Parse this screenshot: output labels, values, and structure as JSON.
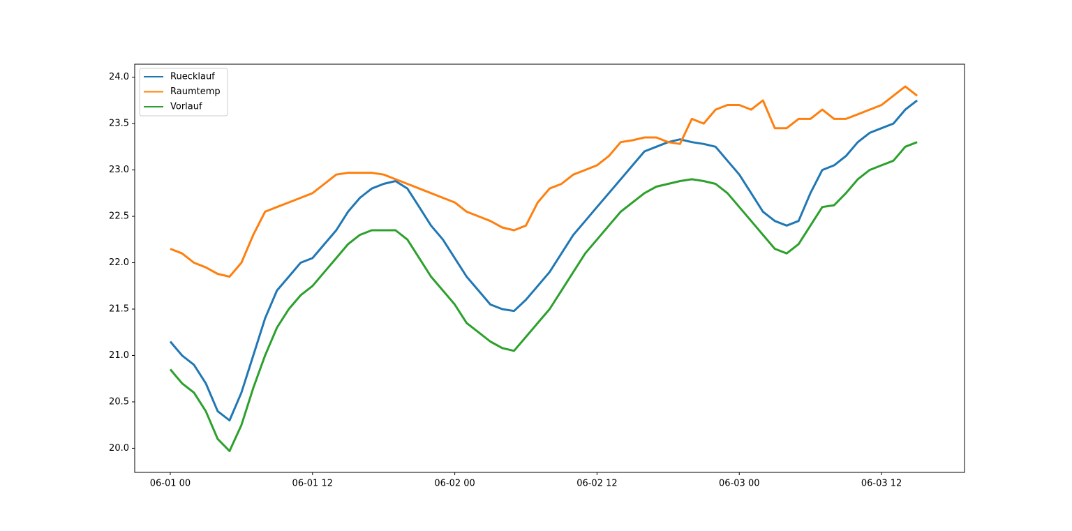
{
  "chart_data": {
    "type": "line",
    "x": [
      "06-01 00",
      "06-01 01",
      "06-01 02",
      "06-01 03",
      "06-01 04",
      "06-01 05",
      "06-01 06",
      "06-01 07",
      "06-01 08",
      "06-01 09",
      "06-01 10",
      "06-01 11",
      "06-01 12",
      "06-01 13",
      "06-01 14",
      "06-01 15",
      "06-01 16",
      "06-01 17",
      "06-01 18",
      "06-01 19",
      "06-01 20",
      "06-01 21",
      "06-01 22",
      "06-01 23",
      "06-02 00",
      "06-02 01",
      "06-02 02",
      "06-02 03",
      "06-02 04",
      "06-02 05",
      "06-02 06",
      "06-02 07",
      "06-02 08",
      "06-02 09",
      "06-02 10",
      "06-02 11",
      "06-02 12",
      "06-02 13",
      "06-02 14",
      "06-02 15",
      "06-02 16",
      "06-02 17",
      "06-02 18",
      "06-02 19",
      "06-02 20",
      "06-02 21",
      "06-02 22",
      "06-02 23",
      "06-03 00",
      "06-03 01",
      "06-03 02",
      "06-03 03",
      "06-03 04",
      "06-03 05",
      "06-03 06",
      "06-03 07",
      "06-03 08",
      "06-03 09",
      "06-03 10",
      "06-03 11",
      "06-03 12",
      "06-03 13",
      "06-03 14",
      "06-03 15"
    ],
    "series": [
      {
        "name": "Ruecklauf",
        "color": "#1f77b4",
        "values": [
          21.15,
          21.0,
          20.9,
          20.7,
          20.4,
          20.3,
          20.6,
          21.0,
          21.4,
          21.7,
          21.85,
          22.0,
          22.05,
          22.2,
          22.35,
          22.55,
          22.7,
          22.8,
          22.85,
          22.88,
          22.8,
          22.6,
          22.4,
          22.25,
          22.05,
          21.85,
          21.7,
          21.55,
          21.5,
          21.48,
          21.6,
          21.75,
          21.9,
          22.1,
          22.3,
          22.45,
          22.6,
          22.75,
          22.9,
          23.05,
          23.2,
          23.25,
          23.3,
          23.33,
          23.3,
          23.28,
          23.25,
          23.1,
          22.95,
          22.75,
          22.55,
          22.45,
          22.4,
          22.45,
          22.75,
          23.0,
          23.05,
          23.15,
          23.3,
          23.4,
          23.45,
          23.5,
          23.65,
          23.75
        ]
      },
      {
        "name": "Raumtemp",
        "color": "#ff7f0e",
        "values": [
          22.15,
          22.1,
          22.0,
          21.95,
          21.88,
          21.85,
          22.0,
          22.3,
          22.55,
          22.6,
          22.65,
          22.7,
          22.75,
          22.85,
          22.95,
          22.97,
          22.97,
          22.97,
          22.95,
          22.9,
          22.85,
          22.8,
          22.75,
          22.7,
          22.65,
          22.55,
          22.5,
          22.45,
          22.38,
          22.35,
          22.4,
          22.65,
          22.8,
          22.85,
          22.95,
          23.0,
          23.05,
          23.15,
          23.3,
          23.32,
          23.35,
          23.35,
          23.3,
          23.28,
          23.55,
          23.5,
          23.65,
          23.7,
          23.7,
          23.65,
          23.75,
          23.45,
          23.45,
          23.55,
          23.55,
          23.65,
          23.55,
          23.55,
          23.6,
          23.65,
          23.7,
          23.8,
          23.9,
          23.8
        ]
      },
      {
        "name": "Vorlauf",
        "color": "#2ca02c",
        "values": [
          20.85,
          20.7,
          20.6,
          20.4,
          20.1,
          19.97,
          20.25,
          20.65,
          21.0,
          21.3,
          21.5,
          21.65,
          21.75,
          21.9,
          22.05,
          22.2,
          22.3,
          22.35,
          22.35,
          22.35,
          22.25,
          22.05,
          21.85,
          21.7,
          21.55,
          21.35,
          21.25,
          21.15,
          21.08,
          21.05,
          21.2,
          21.35,
          21.5,
          21.7,
          21.9,
          22.1,
          22.25,
          22.4,
          22.55,
          22.65,
          22.75,
          22.82,
          22.85,
          22.88,
          22.9,
          22.88,
          22.85,
          22.75,
          22.6,
          22.45,
          22.3,
          22.15,
          22.1,
          22.2,
          22.4,
          22.6,
          22.62,
          22.75,
          22.9,
          23.0,
          23.05,
          23.1,
          23.25,
          23.3
        ]
      }
    ],
    "xlim": [
      "05-31 21",
      "06-03 19"
    ],
    "xticks": [
      "06-01 00",
      "06-01 12",
      "06-02 00",
      "06-02 12",
      "06-03 00",
      "06-03 12"
    ],
    "ylim": [
      19.74,
      24.14
    ],
    "yticks": [
      {
        "value": 20,
        "label": "20.0"
      },
      {
        "value": 20.5,
        "label": "20.5"
      },
      {
        "value": 21,
        "label": "21.0"
      },
      {
        "value": 21.5,
        "label": "21.5"
      },
      {
        "value": 22,
        "label": "22.0"
      },
      {
        "value": 22.5,
        "label": "22.5"
      },
      {
        "value": 23,
        "label": "23.0"
      },
      {
        "value": 23.5,
        "label": "23.5"
      },
      {
        "value": 24,
        "label": "24.0"
      }
    ],
    "legend": "upper left",
    "grid": false
  }
}
